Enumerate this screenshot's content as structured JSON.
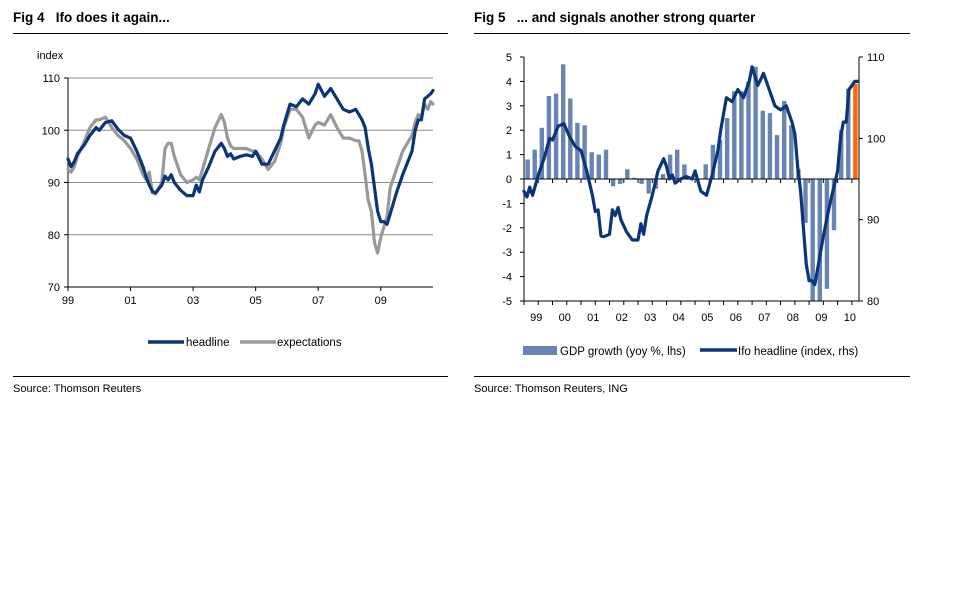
{
  "chart_data": [
    {
      "id": "fig4",
      "type": "line",
      "title_prefix": "Fig 4",
      "title": "Ifo does it again...",
      "ylabel": "index",
      "xlabel": "",
      "ylim": [
        70,
        110
      ],
      "yticks": [
        70,
        80,
        90,
        100,
        110
      ],
      "xlim": [
        1999.0,
        2010.67
      ],
      "xticks": [
        {
          "x": 1999,
          "label": "99"
        },
        {
          "x": 2001,
          "label": "01"
        },
        {
          "x": 2003,
          "label": "03"
        },
        {
          "x": 2005,
          "label": "05"
        },
        {
          "x": 2007,
          "label": "07"
        },
        {
          "x": 2009,
          "label": "09"
        }
      ],
      "grid": true,
      "legend_position": "bottom",
      "series": [
        {
          "name": "headline",
          "color": "#0a3578",
          "x": [
            1999.0,
            1999.1,
            1999.2,
            1999.3,
            1999.5,
            1999.7,
            1999.9,
            2000.0,
            2000.2,
            2000.4,
            2000.6,
            2000.8,
            2001.0,
            2001.2,
            2001.4,
            2001.5,
            2001.6,
            2001.7,
            2001.8,
            2002.0,
            2002.1,
            2002.2,
            2002.3,
            2002.4,
            2002.6,
            2002.8,
            2003.0,
            2003.1,
            2003.2,
            2003.3,
            2003.5,
            2003.7,
            2003.9,
            2004.0,
            2004.1,
            2004.2,
            2004.3,
            2004.5,
            2004.7,
            2004.9,
            2005.0,
            2005.2,
            2005.4,
            2005.6,
            2005.8,
            2005.9,
            2006.1,
            2006.3,
            2006.5,
            2006.7,
            2006.9,
            2007.0,
            2007.2,
            2007.4,
            2007.6,
            2007.8,
            2008.0,
            2008.2,
            2008.3,
            2008.4,
            2008.5,
            2008.6,
            2008.7,
            2008.8,
            2008.9,
            2009.0,
            2009.1,
            2009.2,
            2009.3,
            2009.5,
            2009.7,
            2009.9,
            2010.0,
            2010.1,
            2010.2,
            2010.3,
            2010.4,
            2010.5,
            2010.6,
            2010.67
          ],
          "y": [
            94.5,
            93.0,
            94.0,
            95.5,
            97.0,
            99.0,
            100.5,
            100.0,
            101.5,
            101.8,
            100.2,
            99.0,
            98.5,
            96.0,
            93.0,
            91.0,
            89.5,
            88.3,
            88.0,
            89.5,
            91.2,
            90.5,
            91.5,
            90.0,
            88.5,
            87.5,
            87.5,
            89.5,
            88.2,
            90.5,
            93.0,
            96.0,
            97.5,
            96.5,
            95.0,
            95.5,
            94.5,
            95.0,
            95.3,
            95.0,
            96.0,
            93.5,
            93.5,
            96.0,
            98.5,
            101.0,
            105.0,
            104.5,
            106.0,
            105.0,
            107.0,
            108.8,
            106.5,
            108.0,
            106.0,
            104.0,
            103.5,
            104.0,
            103.0,
            102.0,
            100.5,
            96.5,
            93.5,
            89.0,
            84.5,
            82.5,
            82.5,
            82.0,
            84.0,
            88.0,
            91.5,
            94.5,
            96.0,
            100.0,
            102.0,
            102.0,
            106.0,
            106.5,
            107.0,
            107.6
          ]
        },
        {
          "name": "expectations",
          "color": "#999999",
          "x": [
            1999.0,
            1999.1,
            1999.2,
            1999.3,
            1999.5,
            1999.7,
            1999.9,
            2000.0,
            2000.2,
            2000.4,
            2000.6,
            2000.8,
            2001.0,
            2001.2,
            2001.4,
            2001.5,
            2001.6,
            2001.7,
            2001.8,
            2002.0,
            2002.1,
            2002.2,
            2002.3,
            2002.4,
            2002.6,
            2002.8,
            2003.0,
            2003.1,
            2003.2,
            2003.3,
            2003.5,
            2003.7,
            2003.9,
            2004.0,
            2004.1,
            2004.2,
            2004.3,
            2004.5,
            2004.7,
            2004.9,
            2005.0,
            2005.2,
            2005.4,
            2005.6,
            2005.8,
            2005.9,
            2006.1,
            2006.3,
            2006.5,
            2006.7,
            2006.9,
            2007.0,
            2007.2,
            2007.4,
            2007.6,
            2007.8,
            2008.0,
            2008.2,
            2008.3,
            2008.4,
            2008.5,
            2008.6,
            2008.7,
            2008.8,
            2008.9,
            2009.0,
            2009.1,
            2009.2,
            2009.3,
            2009.5,
            2009.7,
            2009.9,
            2010.0,
            2010.1,
            2010.2,
            2010.3,
            2010.4,
            2010.5,
            2010.6,
            2010.67
          ],
          "y": [
            92.5,
            92.0,
            93.0,
            95.0,
            97.5,
            100.5,
            102.0,
            102.0,
            102.5,
            100.5,
            99.0,
            98.0,
            96.5,
            94.5,
            91.5,
            90.5,
            92.0,
            88.0,
            87.8,
            90.0,
            96.5,
            97.5,
            97.5,
            95.0,
            91.5,
            90.0,
            90.5,
            91.0,
            90.5,
            92.5,
            96.5,
            100.5,
            103.0,
            101.5,
            98.5,
            97.0,
            96.5,
            96.5,
            96.5,
            96.0,
            96.0,
            94.5,
            92.5,
            94.0,
            97.5,
            100.5,
            104.0,
            104.0,
            102.5,
            98.5,
            101.0,
            101.5,
            101.0,
            103.0,
            100.5,
            98.5,
            98.5,
            98.0,
            98.0,
            96.0,
            91.5,
            86.5,
            84.5,
            78.5,
            76.5,
            79.5,
            81.5,
            83.5,
            89.0,
            92.5,
            96.0,
            98.0,
            99.0,
            101.5,
            103.0,
            102.5,
            105.0,
            104.0,
            105.5,
            105.0
          ]
        }
      ]
    },
    {
      "id": "fig5",
      "type": "bar+line",
      "title_prefix": "Fig 5",
      "title": "... and signals another strong quarter",
      "ylim": [
        -5,
        5
      ],
      "yticks": [
        -5,
        -4,
        -3,
        -2,
        -1,
        0,
        1,
        2,
        3,
        4,
        5
      ],
      "y2lim": [
        80,
        110
      ],
      "y2ticks": [
        80,
        90,
        100,
        110
      ],
      "xlim": [
        1999.0,
        2010.75
      ],
      "xticks": [
        {
          "x": 1999,
          "label": "99"
        },
        {
          "x": 2000,
          "label": "00"
        },
        {
          "x": 2001,
          "label": "01"
        },
        {
          "x": 2002,
          "label": "02"
        },
        {
          "x": 2003,
          "label": "03"
        },
        {
          "x": 2004,
          "label": "04"
        },
        {
          "x": 2005,
          "label": "05"
        },
        {
          "x": 2006,
          "label": "06"
        },
        {
          "x": 2007,
          "label": "07"
        },
        {
          "x": 2008,
          "label": "08"
        },
        {
          "x": 2009,
          "label": "09"
        },
        {
          "x": 2010,
          "label": "10"
        }
      ],
      "grid": false,
      "legend_position": "bottom",
      "bar_series": {
        "name": "GDP growth (yoy %, lhs)",
        "color": "#6884b4",
        "highlight_color": "#ff6600",
        "categories": [
          "1999Q1",
          "1999Q2",
          "1999Q3",
          "1999Q4",
          "2000Q1",
          "2000Q2",
          "2000Q3",
          "2000Q4",
          "2001Q1",
          "2001Q2",
          "2001Q3",
          "2001Q4",
          "2002Q1",
          "2002Q2",
          "2002Q3",
          "2002Q4",
          "2003Q1",
          "2003Q2",
          "2003Q3",
          "2003Q4",
          "2004Q1",
          "2004Q2",
          "2004Q3",
          "2004Q4",
          "2005Q1",
          "2005Q2",
          "2005Q3",
          "2005Q4",
          "2006Q1",
          "2006Q2",
          "2006Q3",
          "2006Q4",
          "2007Q1",
          "2007Q2",
          "2007Q3",
          "2007Q4",
          "2008Q1",
          "2008Q2",
          "2008Q3",
          "2008Q4",
          "2009Q1",
          "2009Q2",
          "2009Q3",
          "2009Q4",
          "2010Q1",
          "2010Q2",
          "2010Q3"
        ],
        "values": [
          0.8,
          1.2,
          2.1,
          3.4,
          3.5,
          4.7,
          3.3,
          2.3,
          2.2,
          1.1,
          1.0,
          1.2,
          -0.3,
          -0.2,
          0.4,
          0.05,
          -0.2,
          -0.6,
          -0.4,
          0.2,
          1.0,
          1.2,
          0.6,
          0.1,
          0.0,
          0.6,
          1.4,
          1.6,
          2.5,
          3.6,
          3.6,
          4.0,
          4.6,
          2.8,
          2.7,
          1.8,
          3.2,
          2.2,
          0.4,
          -1.8,
          -6.7,
          -5.8,
          -4.5,
          -2.1,
          2.0,
          3.7,
          3.9
        ],
        "highlight_index": 46
      },
      "line_series": {
        "name": "Ifo headline (index, rhs)",
        "color": "#0a3578",
        "x": [
          1999.0,
          1999.1,
          1999.2,
          1999.3,
          1999.5,
          1999.7,
          1999.9,
          2000.0,
          2000.2,
          2000.4,
          2000.6,
          2000.8,
          2001.0,
          2001.2,
          2001.4,
          2001.5,
          2001.6,
          2001.7,
          2001.8,
          2002.0,
          2002.1,
          2002.2,
          2002.3,
          2002.4,
          2002.6,
          2002.8,
          2003.0,
          2003.1,
          2003.2,
          2003.3,
          2003.5,
          2003.7,
          2003.9,
          2004.0,
          2004.1,
          2004.2,
          2004.3,
          2004.5,
          2004.7,
          2004.9,
          2005.0,
          2005.2,
          2005.4,
          2005.6,
          2005.8,
          2005.9,
          2006.1,
          2006.3,
          2006.5,
          2006.7,
          2006.9,
          2007.0,
          2007.2,
          2007.4,
          2007.6,
          2007.8,
          2008.0,
          2008.2,
          2008.3,
          2008.4,
          2008.5,
          2008.6,
          2008.7,
          2008.8,
          2008.9,
          2009.0,
          2009.1,
          2009.2,
          2009.3,
          2009.5,
          2009.7,
          2009.9,
          2010.0,
          2010.1,
          2010.2,
          2010.3,
          2010.4,
          2010.5,
          2010.6,
          2010.7
        ],
        "y": [
          93.5,
          92.8,
          94.0,
          93.0,
          95.5,
          97.5,
          100.0,
          99.8,
          101.5,
          101.8,
          100.2,
          99.0,
          98.5,
          96.0,
          93.0,
          91.0,
          91.2,
          88.0,
          87.9,
          88.2,
          91.2,
          90.5,
          91.5,
          90.0,
          88.5,
          87.5,
          87.5,
          89.5,
          88.2,
          90.5,
          93.0,
          96.0,
          97.5,
          96.5,
          95.0,
          95.5,
          94.5,
          95.0,
          95.3,
          95.0,
          96.0,
          93.5,
          93.0,
          95.5,
          98.5,
          101.0,
          105.0,
          104.5,
          106.0,
          105.0,
          107.0,
          108.8,
          106.5,
          108.0,
          106.0,
          104.0,
          103.5,
          104.0,
          103.0,
          102.0,
          100.5,
          96.5,
          93.5,
          89.0,
          84.5,
          82.5,
          82.5,
          82.0,
          84.0,
          88.0,
          91.5,
          94.5,
          96.0,
          100.0,
          102.0,
          102.0,
          106.0,
          106.5,
          107.0,
          107.0
        ]
      }
    }
  ],
  "fig4": {
    "title_prefix": "Fig 4",
    "title": "Ifo does it again...",
    "ylabel": "index",
    "legend": [
      "headline",
      "expectations"
    ],
    "source": "Source: Thomson Reuters"
  },
  "fig5": {
    "title_prefix": "Fig 5",
    "title": "... and signals another strong quarter",
    "legend": [
      "GDP growth (yoy %, lhs)",
      "Ifo headline (index, rhs)"
    ],
    "source": "Source: Thomson Reuters, ING"
  }
}
